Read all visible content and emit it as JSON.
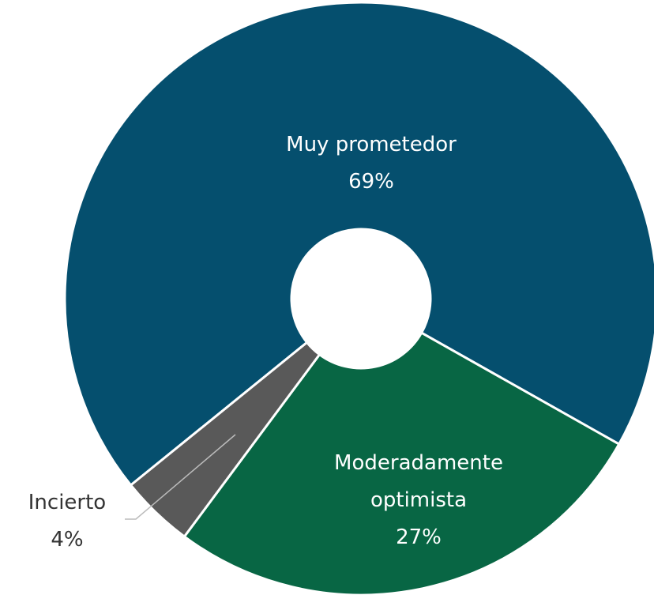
{
  "chart_data": {
    "type": "donut",
    "categories": [
      "Muy prometedor",
      "Moderadamente optimista",
      "Incierto"
    ],
    "values": [
      69,
      27,
      4
    ],
    "value_labels": [
      "69%",
      "27%",
      "4%"
    ],
    "colors": [
      "#054f6e",
      "#086644",
      "#595959"
    ]
  }
}
